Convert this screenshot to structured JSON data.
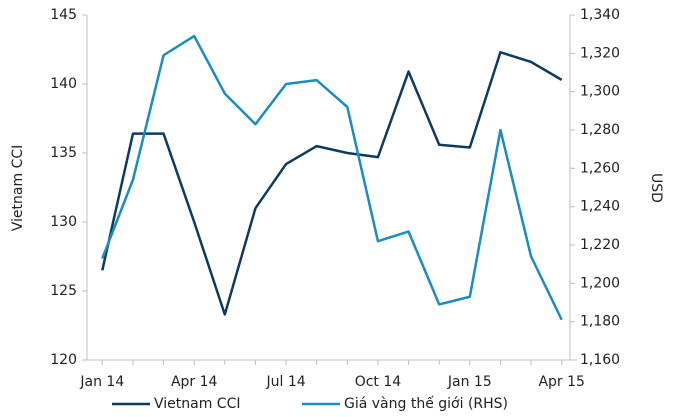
{
  "chart_data": {
    "type": "line",
    "categories": [
      "Jan 14",
      null,
      null,
      "Apr 14",
      null,
      null,
      "Jul 14",
      null,
      null,
      "Oct 14",
      null,
      null,
      "Jan 15",
      null,
      null,
      "Apr 15"
    ],
    "series": [
      {
        "name": "Vietnam CCI",
        "color": "#0d3b5e",
        "values": [
          126.5,
          136.4,
          136.4,
          130.0,
          123.3,
          131.0,
          134.2,
          135.5,
          135.0,
          134.7,
          140.9,
          135.6,
          135.4,
          142.3,
          141.6,
          140.3
        ]
      },
      {
        "name": "Giá vàng thế giới (RHS)",
        "color": "#1a8cc4",
        "axis": "y2",
        "values": [
          1213,
          1254,
          1319,
          1329,
          1299,
          1283,
          1304,
          1306,
          1292,
          1222,
          1227,
          1189,
          1193,
          1280,
          1214,
          1181
        ]
      }
    ],
    "ylabel": "Vietnam CCI",
    "y2label": "USD",
    "ylim": [
      120,
      145
    ],
    "yticks": [
      120,
      125,
      130,
      135,
      140,
      145
    ],
    "y2lim": [
      1160,
      1340
    ],
    "y2ticks": [
      {
        "value": 1160,
        "label": "1,160"
      },
      {
        "value": 1180,
        "label": "1,180"
      },
      {
        "value": 1200,
        "label": "1,200"
      },
      {
        "value": 1220,
        "label": "1,220"
      },
      {
        "value": 1240,
        "label": "1,240"
      },
      {
        "value": 1260,
        "label": "1,260"
      },
      {
        "value": 1280,
        "label": "1,280"
      },
      {
        "value": 1300,
        "label": "1,300"
      },
      {
        "value": 1320,
        "label": "1,320"
      },
      {
        "value": 1340,
        "label": "1,340"
      }
    ],
    "legend": "bottom"
  }
}
